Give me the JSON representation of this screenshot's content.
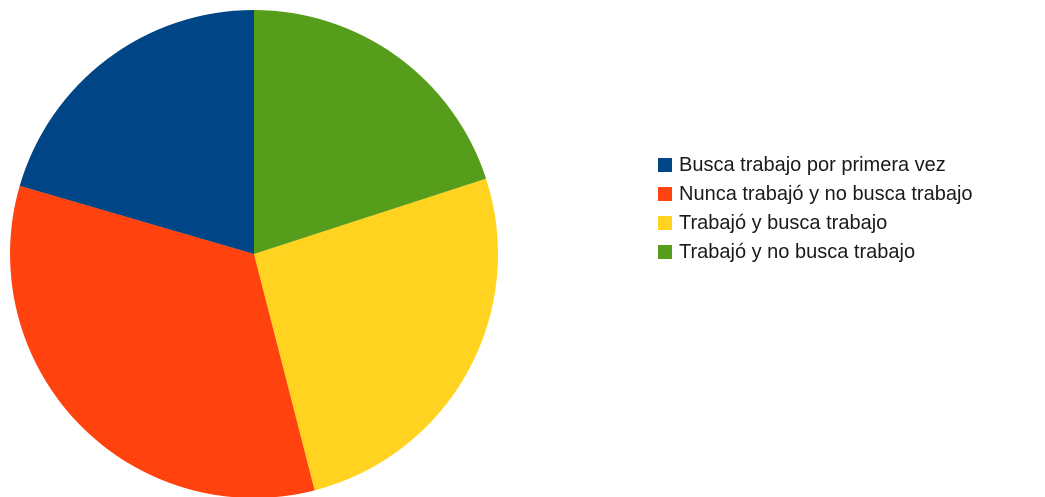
{
  "chart_data": {
    "type": "pie",
    "title": "",
    "categories": [
      "Busca trabajo por primera vez",
      "Nunca trabajó y no busca trabajo",
      "Trabajó y busca trabajo",
      "Trabajó y no busca trabajo"
    ],
    "values": [
      20.5,
      33.5,
      26.0,
      20.0
    ],
    "value_unit": "percent (estimated from slice angles)",
    "colors": [
      "#004586",
      "#ff420e",
      "#ffd320",
      "#579d1c"
    ],
    "start_angle": "12 o'clock",
    "direction": "counter-clockwise",
    "legend": {
      "position": "right",
      "entries": [
        "Busca trabajo por primera vez",
        "Nunca trabajó y no busca trabajo",
        "Trabajó y busca trabajo",
        "Trabajó y no busca trabajo"
      ]
    }
  }
}
